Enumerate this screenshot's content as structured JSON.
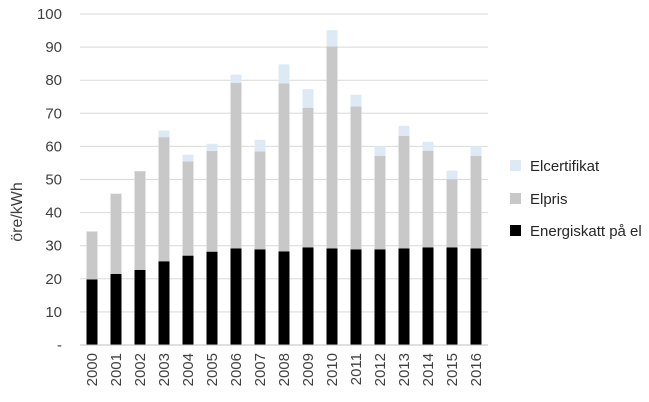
{
  "chart_data": {
    "type": "bar",
    "stacked": true,
    "categories": [
      "2000",
      "2001",
      "2002",
      "2003",
      "2004",
      "2005",
      "2006",
      "2007",
      "2008",
      "2009",
      "2010",
      "2011",
      "2012",
      "2013",
      "2014",
      "2015",
      "2016"
    ],
    "series": [
      {
        "name": "Energiskatt på el",
        "color": "#000000",
        "values": [
          19.8,
          21.5,
          22.7,
          25.3,
          27.0,
          28.2,
          29.2,
          28.9,
          28.3,
          29.5,
          29.2,
          28.9,
          28.9,
          29.2,
          29.5,
          29.5,
          29.2
        ]
      },
      {
        "name": "Elpris",
        "color": "#c8c8c8",
        "values": [
          14.5,
          24.2,
          29.8,
          37.5,
          28.5,
          30.4,
          50.0,
          29.6,
          50.7,
          42.2,
          61.0,
          43.2,
          28.2,
          34.0,
          29.2,
          20.6,
          27.9
        ]
      },
      {
        "name": "Elcertifikat",
        "color": "#dde9f5",
        "values": [
          0.0,
          0.0,
          0.0,
          2.0,
          2.0,
          2.2,
          2.5,
          3.5,
          5.8,
          5.6,
          4.9,
          3.5,
          3.0,
          3.0,
          2.7,
          2.6,
          3.0
        ]
      }
    ],
    "ylabel": "öre/kWh",
    "ylim": [
      0,
      100
    ],
    "yticks": [
      "-",
      "10",
      "20",
      "30",
      "40",
      "50",
      "60",
      "70",
      "80",
      "90",
      "100"
    ],
    "grid": true,
    "legend_position": "right",
    "legend_order": [
      "Elcertifikat",
      "Elpris",
      "Energiskatt på el"
    ]
  }
}
